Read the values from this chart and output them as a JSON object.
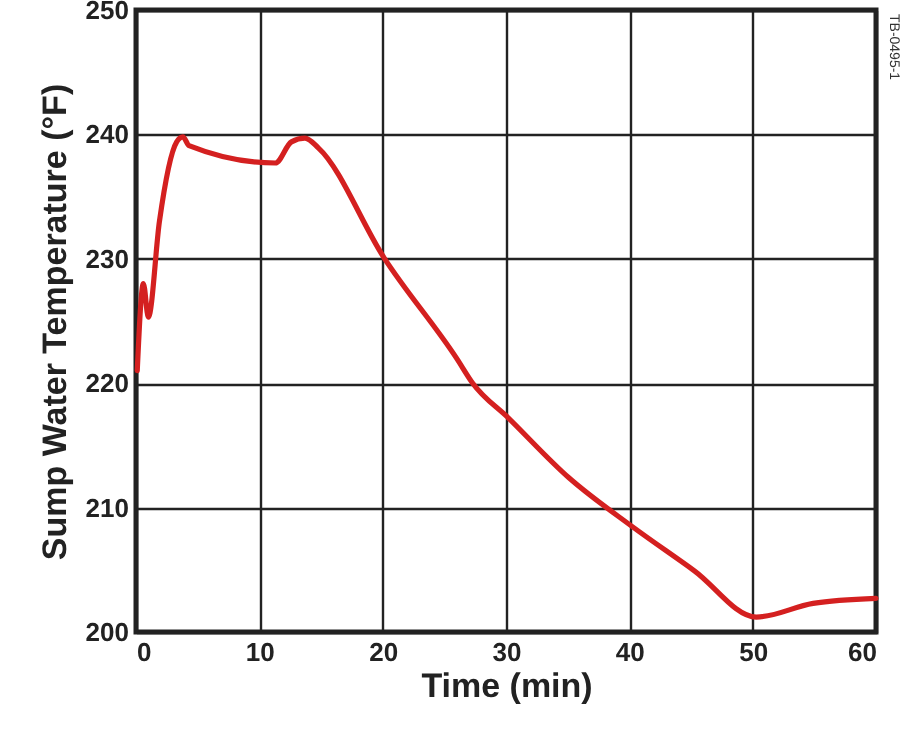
{
  "chart_data": {
    "type": "line",
    "xlabel": "Time (min)",
    "ylabel": "Sump Water Temperature (°F)",
    "x": [
      0.1,
      0.6,
      1.0,
      1.9,
      3.3,
      3.8,
      4.3,
      11.3,
      12.6,
      13.7,
      14.8,
      20.1,
      26,
      27.3,
      30.2,
      35.1,
      40.2,
      45.3,
      50.3,
      54.9,
      60
    ],
    "series": [
      {
        "color": "#d42020",
        "values": [
          221,
          228,
          225.3,
          233,
          239.4,
          239.8,
          239.1,
          237.7,
          239.4,
          239.7,
          238.9,
          230.1,
          222,
          220,
          217.2,
          212.4,
          208.5,
          204.9,
          201.2,
          202.3,
          202.7
        ]
      }
    ],
    "xlim": [
      0,
      60
    ],
    "xticks": [
      0,
      10,
      20,
      30,
      40,
      50,
      60
    ],
    "ylim": [
      200,
      250
    ],
    "yticks": [
      200,
      210,
      220,
      230,
      240,
      250
    ],
    "grid": true,
    "marker": "none",
    "line_style": "solid",
    "annotations": [
      "TB-0495-1"
    ]
  }
}
